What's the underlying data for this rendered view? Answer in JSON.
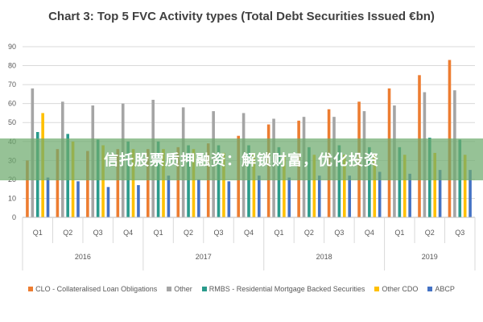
{
  "chart_data": {
    "type": "bar",
    "title": "Chart 3: Top 5 FVC Activity types (Total Debt Securities Issued €bn)",
    "ylim": [
      0,
      90
    ],
    "yticks": [
      0,
      10,
      20,
      30,
      40,
      50,
      60,
      70,
      80,
      90
    ],
    "grid": true,
    "legend_position": "bottom",
    "categories": [
      "Q1",
      "Q2",
      "Q3",
      "Q4",
      "Q1",
      "Q2",
      "Q3",
      "Q4",
      "Q1",
      "Q2",
      "Q3",
      "Q4",
      "Q1",
      "Q2",
      "Q3"
    ],
    "year_groups": [
      {
        "label": "2016",
        "span": 4
      },
      {
        "label": "2017",
        "span": 4
      },
      {
        "label": "2018",
        "span": 4
      },
      {
        "label": "2019",
        "span": 3
      }
    ],
    "series": [
      {
        "name": "CLO - Collateralised Loan Obligations",
        "color": "#ed7d31",
        "values": [
          30,
          36,
          35,
          36,
          36,
          37,
          39,
          43,
          49,
          51,
          57,
          61,
          68,
          75,
          83
        ]
      },
      {
        "name": "Other",
        "color": "#a5a5a5",
        "values": [
          68,
          61,
          59,
          60,
          62,
          58,
          56,
          55,
          52,
          53,
          53,
          56,
          59,
          66,
          67
        ]
      },
      {
        "name": "RMBS - Residential Mortgage Backed Securities",
        "color": "#2a9b8c",
        "values": [
          45,
          44,
          41,
          40,
          40,
          38,
          38,
          38,
          37,
          37,
          38,
          37,
          37,
          42,
          41
        ]
      },
      {
        "name": "Other CDO",
        "color": "#ffc000",
        "values": [
          55,
          40,
          38,
          36,
          36,
          36,
          34,
          34,
          33,
          33,
          33,
          33,
          33,
          34,
          33
        ]
      },
      {
        "name": "ABCP",
        "color": "#4472c4",
        "values": [
          21,
          19,
          16,
          17,
          22,
          20,
          19,
          22,
          21,
          22,
          22,
          24,
          23,
          25,
          25
        ]
      }
    ]
  },
  "watermark": "信托股票质押融资：解锁财富，优化投资"
}
